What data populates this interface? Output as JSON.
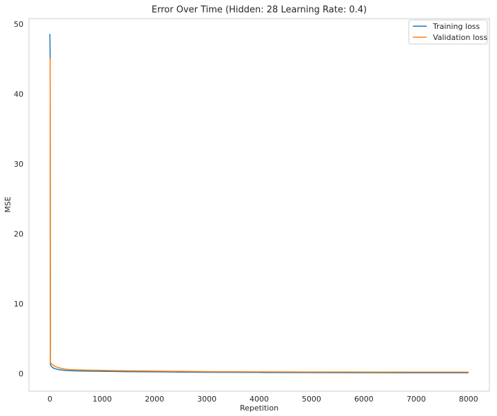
{
  "chart_data": {
    "type": "line",
    "title": "Error Over Time (Hidden: 28 Learning Rate: 0.4)",
    "xlabel": "Repetition",
    "ylabel": "MSE",
    "xlim": [
      -400,
      8400
    ],
    "ylim": [
      -2.5,
      50.8
    ],
    "xticks": [
      0,
      1000,
      2000,
      3000,
      4000,
      5000,
      6000,
      7000,
      8000
    ],
    "yticks": [
      0,
      10,
      20,
      30,
      40,
      50
    ],
    "grid": false,
    "legend_position": "top-right",
    "series": [
      {
        "name": "Training loss",
        "color": "#1f77b4",
        "x": [
          0,
          5,
          10,
          20,
          40,
          70,
          100,
          150,
          200,
          300,
          400,
          500,
          700,
          1000,
          1500,
          2000,
          2500,
          3000,
          4000,
          5000,
          6000,
          7000,
          8000
        ],
        "y": [
          48.6,
          45.3,
          1.3,
          1.15,
          0.95,
          0.8,
          0.72,
          0.62,
          0.55,
          0.47,
          0.43,
          0.4,
          0.37,
          0.35,
          0.3,
          0.27,
          0.24,
          0.21,
          0.18,
          0.16,
          0.15,
          0.14,
          0.13
        ]
      },
      {
        "name": "Validation loss",
        "color": "#ff7f0e",
        "x": [
          0,
          5,
          10,
          20,
          40,
          70,
          100,
          150,
          200,
          300,
          400,
          500,
          700,
          1000,
          1500,
          2000,
          2500,
          3000,
          4000,
          5000,
          6000,
          7000,
          8000
        ],
        "y": [
          45.2,
          44.9,
          1.6,
          1.5,
          1.35,
          1.2,
          1.05,
          0.9,
          0.8,
          0.65,
          0.58,
          0.55,
          0.52,
          0.48,
          0.42,
          0.38,
          0.34,
          0.3,
          0.27,
          0.25,
          0.24,
          0.24,
          0.23
        ]
      }
    ]
  }
}
